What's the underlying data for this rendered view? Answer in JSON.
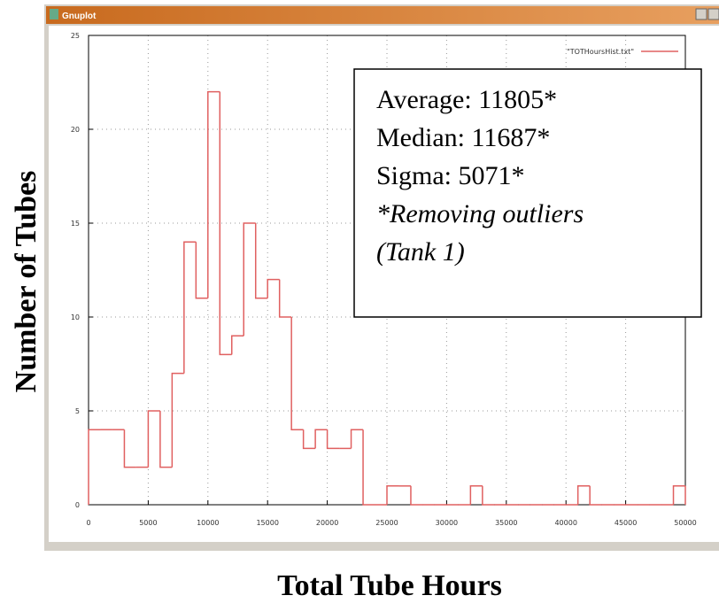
{
  "window_title": "Gnuplot",
  "chart_data": {
    "type": "histogram",
    "xlabel": "Total Tube Hours",
    "ylabel": "Number of Tubes",
    "legend": "\"TOTHoursHist.txt\"",
    "legend_position": "top-right",
    "color": "#e06060",
    "grid": true,
    "annotation": [
      "Average: 11805*",
      "Median: 11687*",
      "Sigma: 5071*",
      "*Removing outliers",
      "(Tank 1)"
    ],
    "bins": [
      0,
      1000,
      2000,
      3000,
      4000,
      5000,
      6000,
      7000,
      8000,
      9000,
      10000,
      11000,
      12000,
      13000,
      14000,
      15000,
      16000,
      17000,
      18000,
      19000,
      20000,
      21000,
      22000,
      23000,
      24000,
      25000,
      26000,
      27000,
      28000,
      29000,
      30000,
      31000,
      32000,
      33000,
      34000,
      35000,
      36000,
      37000,
      38000,
      39000,
      40000,
      41000,
      42000,
      43000,
      44000,
      45000,
      46000,
      47000,
      48000,
      49000,
      50000
    ],
    "values": [
      4,
      4,
      4,
      2,
      2,
      5,
      2,
      7,
      14,
      11,
      22,
      8,
      9,
      15,
      11,
      12,
      10,
      4,
      3,
      4,
      3,
      3,
      4,
      0,
      0,
      1,
      1,
      0,
      0,
      0,
      0,
      0,
      1,
      0,
      0,
      0,
      0,
      0,
      0,
      0,
      0,
      1,
      0,
      0,
      0,
      0,
      0,
      0,
      0,
      1
    ],
    "xlim": [
      0,
      50000
    ],
    "xticks": [
      0,
      5000,
      10000,
      15000,
      20000,
      25000,
      30000,
      35000,
      40000,
      45000,
      50000
    ],
    "ylim": [
      0,
      25
    ],
    "yticks": [
      0,
      5,
      10,
      15,
      20,
      25
    ]
  }
}
